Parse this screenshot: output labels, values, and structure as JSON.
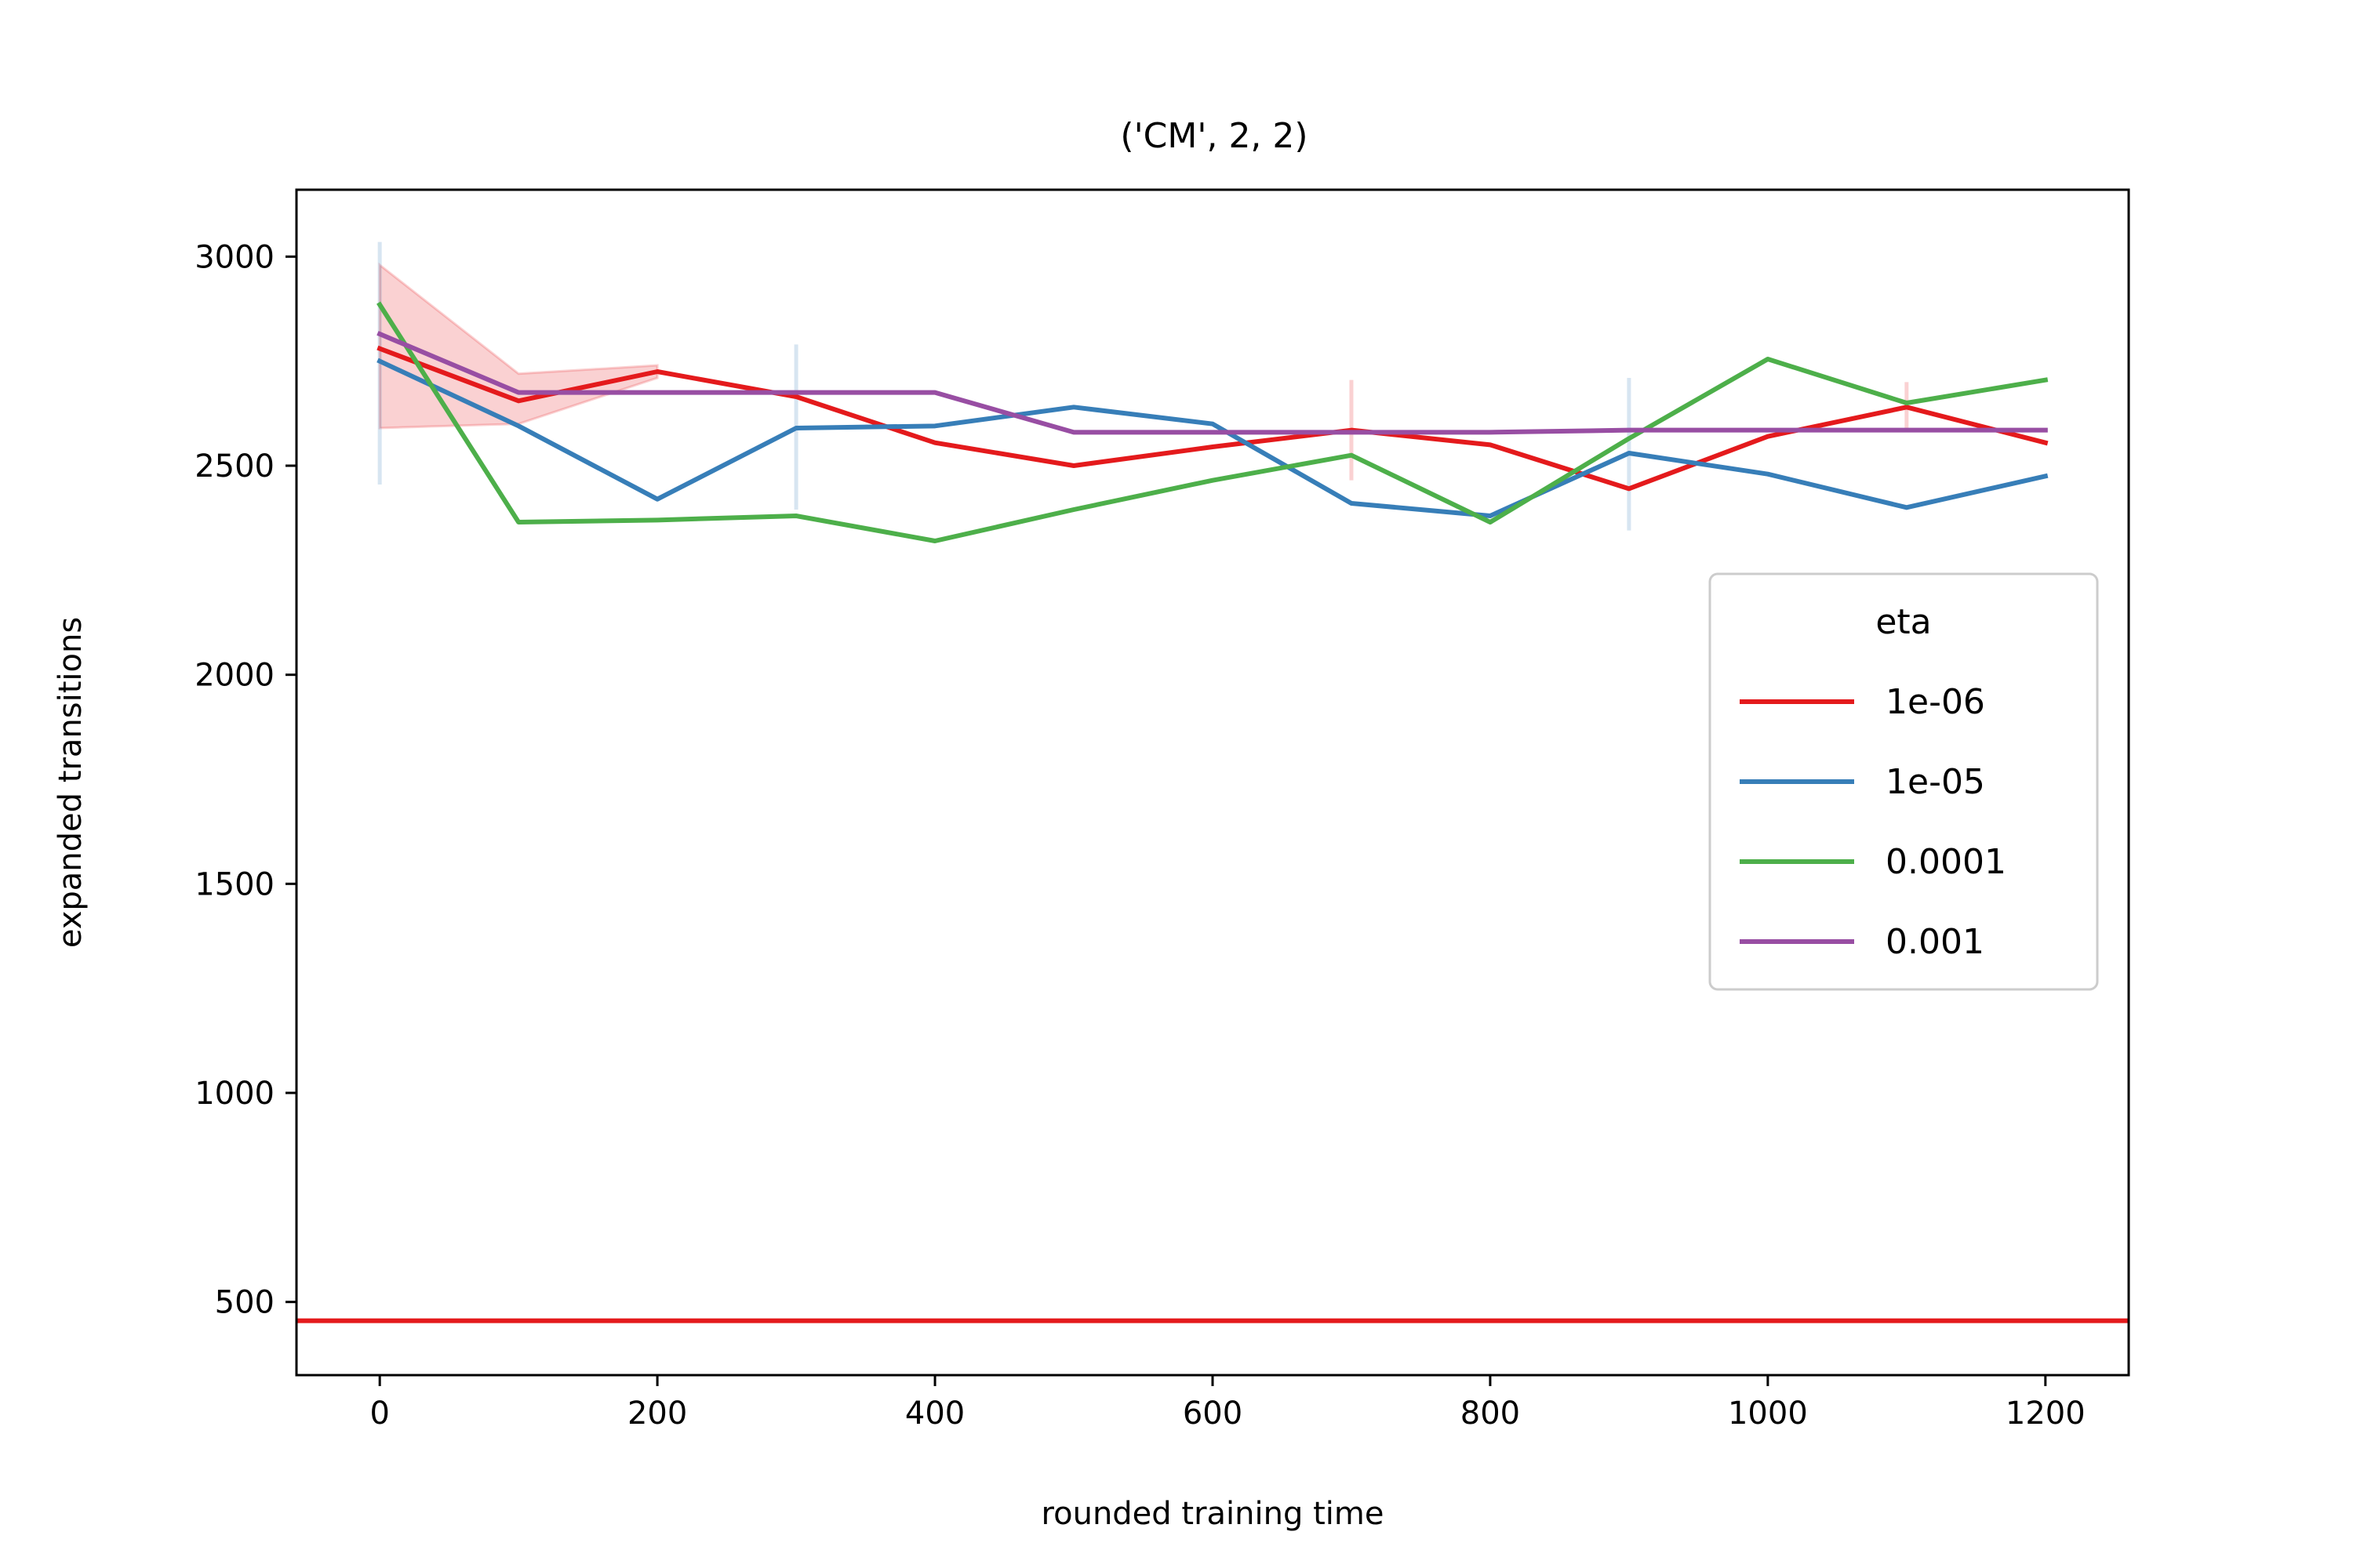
{
  "chart_data": {
    "type": "line",
    "title": "('CM', 2, 2)",
    "xlabel": "rounded training time",
    "ylabel": "expanded transitions",
    "xlim": [
      -60,
      1260
    ],
    "ylim": [
      325,
      3160
    ],
    "xticks": [
      0,
      200,
      400,
      600,
      800,
      1000,
      1200
    ],
    "yticks": [
      500,
      1000,
      1500,
      2000,
      2500,
      3000
    ],
    "xtick_labels": [
      "0",
      "200",
      "400",
      "600",
      "800",
      "1000",
      "1200"
    ],
    "ytick_labels": [
      "500",
      "1000",
      "1500",
      "2000",
      "2500",
      "3000"
    ],
    "grid": false,
    "legend": {
      "title": "eta",
      "position": "right"
    },
    "x": [
      0,
      100,
      200,
      300,
      400,
      500,
      600,
      700,
      800,
      900,
      1000,
      1100,
      1200
    ],
    "series": [
      {
        "name": "1e-06",
        "color": "#e41a1c",
        "values": [
          2780,
          2655,
          2725,
          2665,
          2555,
          2500,
          2545,
          2585,
          2550,
          2445,
          2570,
          2640,
          2555
        ],
        "band": {
          "x": [
            0,
            100,
            200
          ],
          "lower": [
            2590,
            2600,
            2710
          ],
          "upper": [
            2980,
            2720,
            2740
          ]
        },
        "errorbars": [
          {
            "x": 700,
            "low": 2465,
            "high": 2705
          },
          {
            "x": 1100,
            "low": 2585,
            "high": 2700
          }
        ]
      },
      {
        "name": "1e-05",
        "color": "#377eb8",
        "values": [
          2750,
          2595,
          2420,
          2590,
          2595,
          2640,
          2600,
          2410,
          2380,
          2530,
          2480,
          2400,
          2475
        ],
        "errorbars": [
          {
            "x": 0,
            "low": 2455,
            "high": 3035
          },
          {
            "x": 300,
            "low": 2395,
            "high": 2790
          },
          {
            "x": 900,
            "low": 2345,
            "high": 2710
          }
        ]
      },
      {
        "name": "0.0001",
        "color": "#4daf4a",
        "values": [
          2885,
          2365,
          2370,
          2380,
          2320,
          2395,
          2465,
          2525,
          2365,
          2565,
          2755,
          2650,
          2705
        ]
      },
      {
        "name": "0.001",
        "color": "#984ea3",
        "values": [
          2815,
          2675,
          2675,
          2675,
          2675,
          2580,
          2580,
          2580,
          2580,
          2585,
          2585,
          2585,
          2585
        ]
      }
    ],
    "hline": {
      "y": 455,
      "color": "#e41a1c"
    }
  }
}
